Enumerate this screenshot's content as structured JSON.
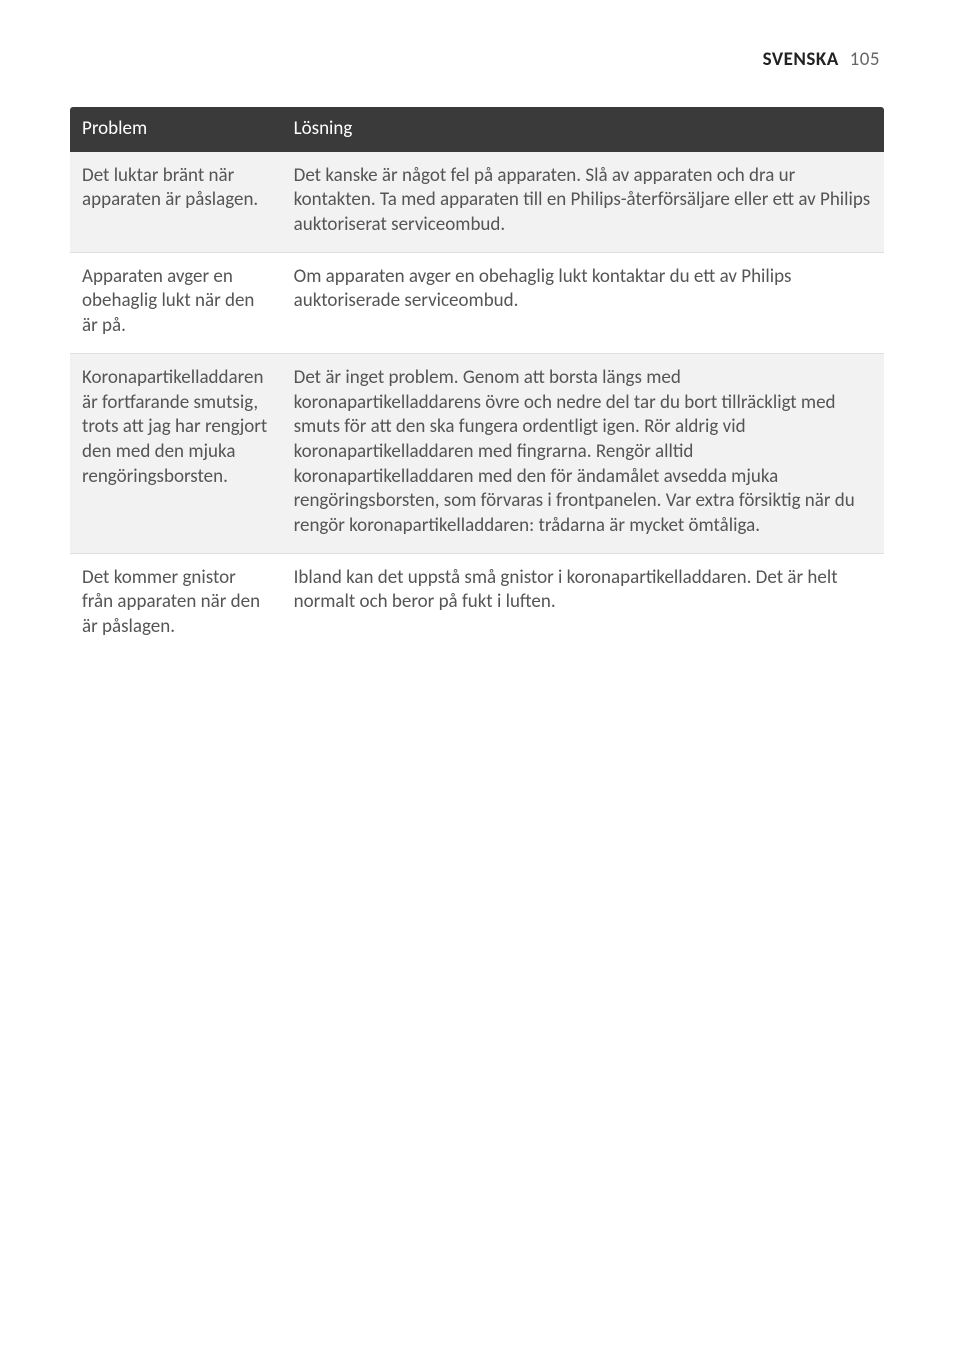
{
  "header": {
    "language": "SVENSKA",
    "page_number": "105"
  },
  "table": {
    "columns": {
      "problem": "Problem",
      "solution": "Lösning"
    },
    "rows": [
      {
        "problem": "Det luktar bränt när apparaten är påslagen.",
        "solution": "Det kanske är något fel på apparaten. Slå av apparaten och dra ur kontakten. Ta med apparaten till en Philips-återförsäljare eller ett av Philips auktoriserat serviceombud."
      },
      {
        "problem": "Apparaten avger en obehaglig lukt när den är på.",
        "solution": "Om apparaten avger en obehaglig lukt kontaktar du ett av Philips auktoriserade serviceombud."
      },
      {
        "problem": "Koronapartikelladdaren är fortfarande smutsig, trots att jag har rengjort den med den mjuka rengöringsborsten.",
        "solution": "Det är inget problem. Genom att borsta längs med koronapartikelladdarens övre och nedre del tar du bort tillräckligt med smuts för att den ska fungera ordentligt igen. Rör aldrig vid koronapartikelladdaren med fingrarna. Rengör alltid koronapartikelladdaren med den för ändamålet avsedda mjuka rengöringsborsten, som förvaras i frontpanelen. Var extra försiktig när du rengör koronapartikelladdaren: trådarna är mycket ömtåliga."
      },
      {
        "problem": "Det kommer gnistor från apparaten när den är påslagen.",
        "solution": "Ibland kan det uppstå små gnistor i koronapartikelladdaren. Det är helt normalt och beror på fukt i luften."
      }
    ]
  },
  "styling": {
    "page_bg": "#ffffff",
    "header_bg": "#3a3a3a",
    "header_text": "#ffffff",
    "row_alt_bg": "#f2f2f2",
    "row_bg": "#ffffff",
    "text_color": "#555555",
    "border_color": "#e0e0e0",
    "font_size_body": 19,
    "font_size_header": 19
  }
}
